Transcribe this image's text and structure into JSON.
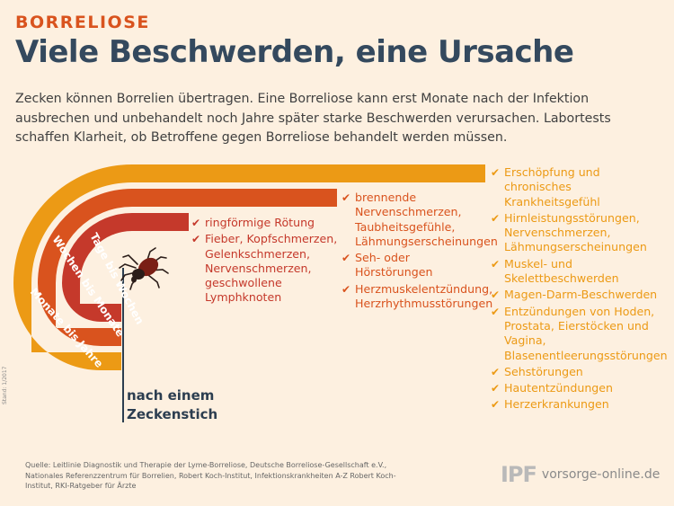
{
  "header": {
    "kicker": "BORRELIOSE",
    "title": "Viele Beschwerden, eine Ursache",
    "intro": "Zecken können Borrelien übertragen. Eine Borreliose kann erst Monate nach der Infektion ausbrechen und unbehandelt noch Jahre später starke Beschwerden verursachen. Labortests schaffen Klarheit, ob Betroffene gegen Borreliose behandelt werden müssen."
  },
  "colors": {
    "background": "#fdf0e0",
    "accent_red": "#c5392b",
    "accent_orange": "#d9531e",
    "accent_yellow": "#ec9a15",
    "title_navy": "#34495e"
  },
  "stages": [
    {
      "label": "Tage bis Wochen",
      "color": "#c5392b",
      "symptoms": [
        "ringförmige Rötung",
        "Fieber, Kopfschmerzen, Gelenkschmerzen, Nervenschmerzen, geschwollene Lymphknoten"
      ]
    },
    {
      "label": "Wochen bis Monate",
      "color": "#d9531e",
      "symptoms": [
        "brennende Nervenschmerzen, Taubheitsgefühle, Lähmungserscheinungen",
        "Seh- oder Hörstörungen",
        "Herzmuskelentzündung, Herzrhythmusstörungen"
      ]
    },
    {
      "label": "Monate bis Jahre",
      "color": "#ec9a15",
      "symptoms": [
        "Erschöpfung und chronisches Krankheitsgefühl",
        "Hirnleistungsstörungen, Nervenschmerzen, Lähmungserscheinungen",
        "Muskel- und Skelettbeschwerden",
        "Magen-Darm-Beschwerden",
        "Entzündungen von Hoden, Prostata, Eierstöcken und Vagina, Blasenentleerungsstörungen",
        "Sehstörungen",
        "Hautentzündungen",
        "Herzerkrankungen"
      ]
    }
  ],
  "origin_label": "nach einem Zeckenstich",
  "stand": "Stand: 1/2017",
  "source": "Quelle: Leitlinie Diagnostik und Therapie der Lyme-Borreliose, Deutsche Borreliose-Gesellschaft e.V., Nationales Referenzzentrum für Borrelien, Robert Koch-Institut, Infektionskrankheiten A-Z Robert Koch-Institut, RKI-Ratgeber für Ärzte",
  "logo": {
    "mark": "IPF",
    "url": "vorsorge-online.de"
  },
  "icons": {
    "check": "check-icon",
    "tick": "tick-icon"
  }
}
